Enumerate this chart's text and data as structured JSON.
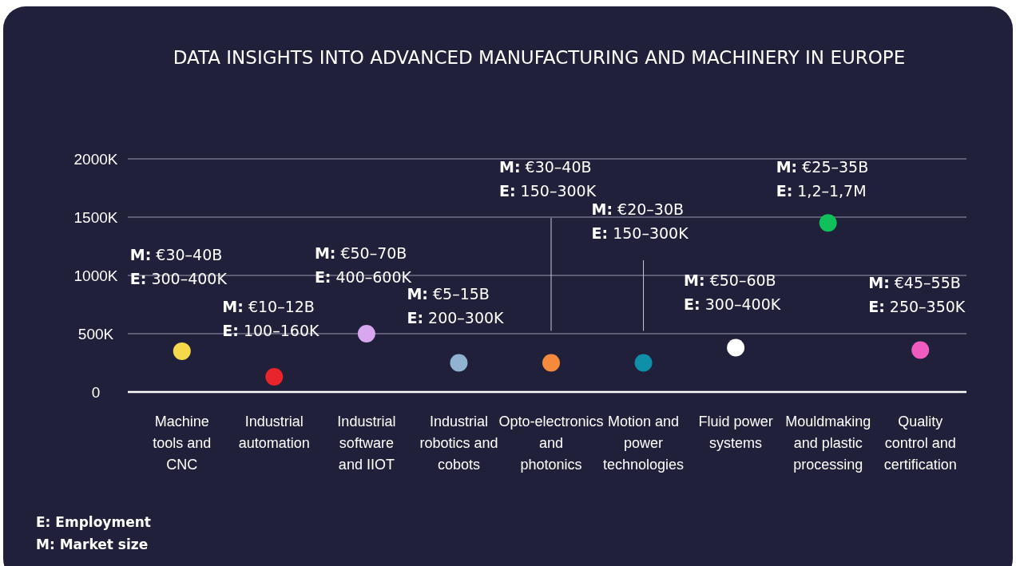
{
  "chart_data": {
    "type": "scatter",
    "title": "DATA INSIGHTS INTO ADVANCED MANUFACTURING AND MACHINERY IN EUROPE",
    "categories": [
      "Machine tools and CNC",
      "Industrial automation",
      "Industrial software and IIOT",
      "Industrial robotics and cobots",
      "Opto-electronics and photonics",
      "Motion and power technologies",
      "Fluid power systems",
      "Mouldmaking and plastic processing",
      "Quality control and certification"
    ],
    "values": [
      350,
      130,
      500,
      250,
      250,
      250,
      380,
      1450,
      360
    ],
    "colors": [
      "#f5d94a",
      "#e8252a",
      "#d9a6f0",
      "#8fb3d0",
      "#f58a3c",
      "#0f8fa8",
      "#ffffff",
      "#10c05a",
      "#f05bbf"
    ],
    "ylim": [
      0,
      2000
    ],
    "yticks": [
      {
        "value": 0,
        "label": "0"
      },
      {
        "value": 500,
        "label": "500K"
      },
      {
        "value": 1000,
        "label": "1000K"
      },
      {
        "value": 1500,
        "label": "1500K"
      },
      {
        "value": 2000,
        "label": "2000K"
      }
    ],
    "grid": "y",
    "marker": "circle",
    "annotations": [
      "M: €30–40B\nE: 300–400K",
      "M: €10–12B\nE: 100–160K",
      "M: €50–70B\nE: 400–600K",
      "M: €5–15B\nE: 200–300K",
      "M: €30–40B\nE: 150–300K",
      "M: €20–30B\nE: 150–300K",
      "M: €50–60B\nE: 300–400K",
      "M: €25–35B\nE: 1,2–1,7M",
      "M: €45–55B\nE: 250–350K",
      "E: Employment",
      "M: Market size"
    ]
  }
}
